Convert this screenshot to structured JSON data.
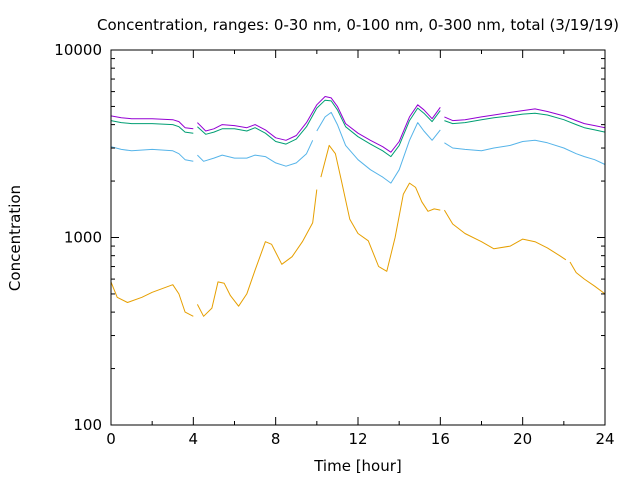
{
  "chart_data": {
    "type": "line",
    "title": "Concentration, ranges: 0-30 nm, 0-100 nm, 0-300 nm, total (3/19/19)",
    "xlabel": "Time [hour]",
    "ylabel": "Concentration",
    "xlim": [
      0,
      24
    ],
    "ylim": [
      100,
      10000
    ],
    "yscale": "log",
    "grid": false,
    "legend": "none",
    "x_ticks": [
      0,
      4,
      8,
      12,
      16,
      20,
      24
    ],
    "x_tick_labels": [
      "0",
      "4",
      "8",
      "12",
      "16",
      "20",
      "24"
    ],
    "y_ticks": [
      100,
      1000,
      10000
    ],
    "y_tick_labels": [
      "100",
      "1000",
      "10000"
    ],
    "x_minor_step": 2,
    "series": [
      {
        "color": "#e69f00",
        "x": [
          0,
          0.3,
          0.8,
          1.5,
          2.0,
          3.0,
          3.3,
          3.6,
          4.0,
          null,
          4.2,
          4.5,
          4.9,
          5.2,
          5.5,
          5.8,
          6.2,
          6.6,
          7.0,
          7.5,
          7.8,
          8.3,
          8.8,
          9.3,
          9.8,
          10.0,
          null,
          10.2,
          10.6,
          10.9,
          11.2,
          11.6,
          12.0,
          12.5,
          13.0,
          13.4,
          13.8,
          14.2,
          14.5,
          14.8,
          15.1,
          15.4,
          15.7,
          16.0,
          null,
          16.2,
          16.6,
          17.2,
          18.0,
          18.6,
          19.4,
          20.0,
          20.6,
          21.2,
          21.8,
          22.1,
          null,
          22.3,
          22.6,
          23.0,
          23.5,
          24.0
        ],
        "values": [
          580,
          480,
          450,
          480,
          510,
          560,
          500,
          400,
          380,
          null,
          440,
          380,
          420,
          580,
          570,
          490,
          430,
          500,
          670,
          950,
          920,
          720,
          790,
          950,
          1200,
          1800,
          null,
          2100,
          3100,
          2800,
          2000,
          1250,
          1050,
          960,
          700,
          660,
          1000,
          1700,
          1950,
          1850,
          1550,
          1380,
          1420,
          1400,
          null,
          1400,
          1180,
          1050,
          950,
          870,
          900,
          980,
          950,
          880,
          800,
          760,
          null,
          740,
          650,
          600,
          550,
          500
        ]
      },
      {
        "color": "#56b4e9",
        "x": [
          0,
          0.5,
          1.0,
          2.0,
          3.0,
          3.3,
          3.6,
          4.0,
          null,
          4.2,
          4.5,
          5.0,
          5.4,
          6.0,
          6.6,
          7.0,
          7.5,
          8.0,
          8.5,
          9.0,
          9.5,
          9.8,
          null,
          10.0,
          10.4,
          10.7,
          11.0,
          11.4,
          12.0,
          12.6,
          13.2,
          13.6,
          14.0,
          14.5,
          14.9,
          15.2,
          15.6,
          16.0,
          null,
          16.2,
          16.6,
          17.2,
          18.0,
          18.6,
          19.4,
          20.0,
          20.6,
          21.2,
          22.0,
          22.6,
          23.0,
          23.5,
          24.0
        ],
        "values": [
          3050,
          2950,
          2900,
          2950,
          2900,
          2800,
          2600,
          2550,
          null,
          2750,
          2550,
          2650,
          2750,
          2650,
          2650,
          2750,
          2700,
          2500,
          2400,
          2500,
          2800,
          3300,
          null,
          3700,
          4400,
          4650,
          4000,
          3100,
          2600,
          2300,
          2100,
          1950,
          2300,
          3300,
          4100,
          3700,
          3300,
          3750,
          null,
          3200,
          3000,
          2950,
          2900,
          3000,
          3100,
          3250,
          3300,
          3200,
          3000,
          2800,
          2700,
          2600,
          2450
        ]
      },
      {
        "color": "#009e73",
        "x": [
          0,
          0.5,
          1.0,
          2.0,
          3.0,
          3.3,
          3.6,
          4.0,
          null,
          4.2,
          4.6,
          5.0,
          5.4,
          6.0,
          6.6,
          7.0,
          7.5,
          8.0,
          8.5,
          9.0,
          9.5,
          10.0,
          10.4,
          10.7,
          11.0,
          11.4,
          12.0,
          12.6,
          13.2,
          13.6,
          14.0,
          14.5,
          14.9,
          15.2,
          15.6,
          16.0,
          null,
          16.2,
          16.6,
          17.2,
          18.0,
          18.6,
          19.4,
          20.0,
          20.6,
          21.2,
          22.0,
          22.6,
          23.0,
          23.5,
          24.0
        ],
        "values": [
          4200,
          4100,
          4050,
          4050,
          4000,
          3900,
          3650,
          3600,
          null,
          3900,
          3550,
          3650,
          3800,
          3800,
          3700,
          3850,
          3600,
          3250,
          3150,
          3350,
          3900,
          4900,
          5400,
          5350,
          4800,
          3900,
          3450,
          3150,
          2900,
          2700,
          3100,
          4200,
          4900,
          4600,
          4150,
          4750,
          null,
          4200,
          4050,
          4100,
          4250,
          4350,
          4450,
          4550,
          4600,
          4500,
          4250,
          4000,
          3850,
          3750,
          3650
        ]
      },
      {
        "color": "#9400d3",
        "x": [
          0,
          0.5,
          1.0,
          2.0,
          3.0,
          3.3,
          3.6,
          4.0,
          null,
          4.2,
          4.6,
          5.0,
          5.4,
          6.0,
          6.6,
          7.0,
          7.5,
          8.0,
          8.5,
          9.0,
          9.5,
          10.0,
          10.4,
          10.7,
          11.0,
          11.4,
          12.0,
          12.6,
          13.2,
          13.6,
          14.0,
          14.5,
          14.9,
          15.2,
          15.6,
          16.0,
          null,
          16.2,
          16.6,
          17.2,
          18.0,
          18.6,
          19.4,
          20.0,
          20.6,
          21.2,
          22.0,
          22.6,
          23.0,
          23.5,
          24.0
        ],
        "values": [
          4450,
          4350,
          4300,
          4300,
          4250,
          4150,
          3850,
          3800,
          null,
          4100,
          3700,
          3800,
          4000,
          3950,
          3850,
          4000,
          3750,
          3400,
          3300,
          3500,
          4100,
          5100,
          5650,
          5550,
          5000,
          4050,
          3600,
          3300,
          3050,
          2850,
          3250,
          4400,
          5100,
          4800,
          4300,
          4950,
          null,
          4400,
          4200,
          4250,
          4400,
          4500,
          4650,
          4750,
          4850,
          4700,
          4450,
          4200,
          4050,
          3950,
          3850
        ]
      }
    ]
  }
}
